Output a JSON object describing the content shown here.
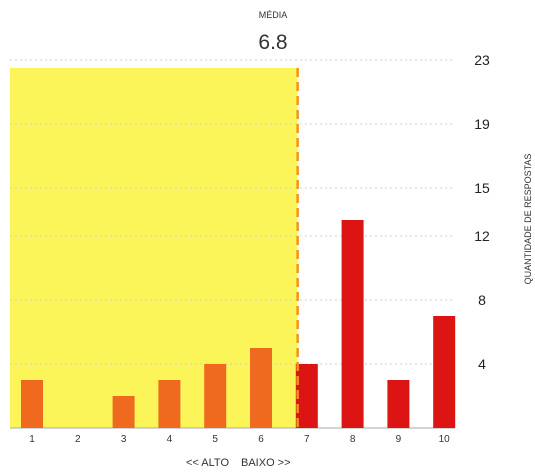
{
  "chart_data": {
    "type": "bar",
    "mean_label": "MÉDIA",
    "mean_value": "6.8",
    "mean_x": 6.8,
    "categories": [
      "1",
      "2",
      "3",
      "4",
      "5",
      "6",
      "7",
      "8",
      "9",
      "10"
    ],
    "values": [
      3,
      0,
      2,
      3,
      4,
      5,
      4,
      13,
      3,
      7
    ],
    "bar_colors": [
      "#ef6a1e",
      "#ef6a1e",
      "#ef6a1e",
      "#ef6a1e",
      "#ef6a1e",
      "#ef6a1e",
      "#dc1414",
      "#dc1414",
      "#dc1414",
      "#dc1414"
    ],
    "yticks": [
      "4",
      "8",
      "12",
      "15",
      "19",
      "23"
    ],
    "ylim": [
      0,
      23
    ],
    "ylabel": "QUANTIDADE DE RESPOSTAS",
    "xlabel_left": "<< ALTO",
    "xlabel_right": "BAIXO >>",
    "highlight_range": [
      0.5,
      6.8
    ],
    "highlight_color": "#fbf55a",
    "mean_line_color": "#f0941e",
    "grid": true,
    "grid_color": "#d0d0d0",
    "axis_color": "#aaaaaa"
  }
}
